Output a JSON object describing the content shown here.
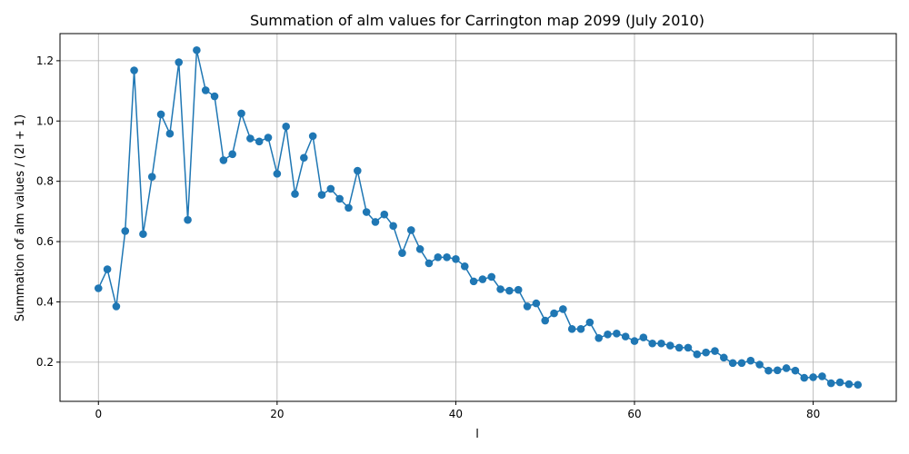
{
  "chart_data": {
    "type": "line",
    "title": "Summation of alm values for Carrington map 2099 (July 2010)",
    "xlabel": "l",
    "ylabel": "Summation of alm values / (2l + 1)",
    "xlim": [
      -4.3,
      89.3
    ],
    "ylim": [
      0.07,
      1.29
    ],
    "xticks": [
      0,
      20,
      40,
      60,
      80
    ],
    "yticks": [
      0.2,
      0.4,
      0.6,
      0.8,
      1.0,
      1.2
    ],
    "xtick_labels": [
      "0",
      "20",
      "40",
      "60",
      "80"
    ],
    "ytick_labels": [
      "0.2",
      "0.4",
      "0.6",
      "0.8",
      "1.0",
      "1.2"
    ],
    "grid": true,
    "marker": "circle",
    "color": "#1f77b4",
    "x": [
      0,
      1,
      2,
      3,
      4,
      5,
      6,
      7,
      8,
      9,
      10,
      11,
      12,
      13,
      14,
      15,
      16,
      17,
      18,
      19,
      20,
      21,
      22,
      23,
      24,
      25,
      26,
      27,
      28,
      29,
      30,
      31,
      32,
      33,
      34,
      35,
      36,
      37,
      38,
      39,
      40,
      41,
      42,
      43,
      44,
      45,
      46,
      47,
      48,
      49,
      50,
      51,
      52,
      53,
      54,
      55,
      56,
      57,
      58,
      59,
      60,
      61,
      62,
      63,
      64,
      65,
      66,
      67,
      68,
      69,
      70,
      71,
      72,
      73,
      74,
      75,
      76,
      77,
      78,
      79,
      80,
      81,
      82,
      83,
      84,
      85
    ],
    "y": [
      0.445,
      0.508,
      0.385,
      0.635,
      1.168,
      0.625,
      0.815,
      1.022,
      0.958,
      1.195,
      0.672,
      1.235,
      1.102,
      1.082,
      0.87,
      0.89,
      1.025,
      0.942,
      0.932,
      0.945,
      0.825,
      0.982,
      0.758,
      0.878,
      0.95,
      0.755,
      0.775,
      0.742,
      0.712,
      0.835,
      0.698,
      0.665,
      0.69,
      0.652,
      0.562,
      0.638,
      0.575,
      0.528,
      0.548,
      0.548,
      0.542,
      0.518,
      0.468,
      0.475,
      0.483,
      0.442,
      0.437,
      0.44,
      0.385,
      0.395,
      0.338,
      0.362,
      0.376,
      0.31,
      0.31,
      0.332,
      0.28,
      0.292,
      0.295,
      0.285,
      0.27,
      0.282,
      0.262,
      0.262,
      0.255,
      0.248,
      0.248,
      0.226,
      0.232,
      0.237,
      0.215,
      0.197,
      0.197,
      0.205,
      0.192,
      0.172,
      0.173,
      0.18,
      0.172,
      0.148,
      0.15,
      0.153,
      0.13,
      0.133,
      0.127,
      0.125
    ]
  }
}
